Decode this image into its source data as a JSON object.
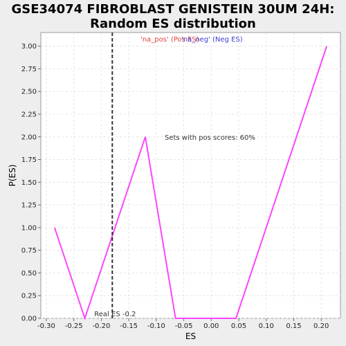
{
  "chart_data": {
    "type": "line",
    "title_line1": "GSE34074 FIBROBLAST GENISTEIN 30UM 24H:",
    "title_line2": "Random ES distribution",
    "xlabel": "ES",
    "ylabel": "P(ES)",
    "xlim": [
      -0.31,
      0.235
    ],
    "ylim": [
      0,
      3.15
    ],
    "xticks": [
      -0.3,
      -0.25,
      -0.2,
      -0.15,
      -0.1,
      -0.05,
      0.0,
      0.05,
      0.1,
      0.15,
      0.2
    ],
    "xtick_labels": [
      "-0.30",
      "-0.25",
      "-0.20",
      "-0.15",
      "-0.10",
      "-0.05",
      "0.00",
      "0.05",
      "0.10",
      "0.15",
      "0.20"
    ],
    "yticks": [
      0,
      0.25,
      0.5,
      0.75,
      1.0,
      1.25,
      1.5,
      1.75,
      2.0,
      2.25,
      2.5,
      2.75,
      3.0
    ],
    "ytick_labels": [
      "0.00",
      "0.25",
      "0.50",
      "0.75",
      "1.00",
      "1.25",
      "1.50",
      "1.75",
      "2.00",
      "2.25",
      "2.50",
      "2.75",
      "3.00"
    ],
    "grid": true,
    "series": [
      {
        "color": "#ff44ff",
        "x": [
          -0.285,
          -0.23,
          -0.12,
          -0.065,
          0.045,
          0.21
        ],
        "y": [
          1.0,
          0.0,
          2.0,
          0.0,
          0.0,
          3.0
        ]
      }
    ],
    "real_es": -0.18,
    "real_es_label": "Real ES -0.2",
    "legend": [
      {
        "text": "'na_pos' (Pos ES)",
        "color": "#e04040"
      },
      {
        "text": "'na_neg' (Neg ES)",
        "color": "#4040d0"
      }
    ],
    "annotation": "Sets with pos scores: 60%"
  }
}
